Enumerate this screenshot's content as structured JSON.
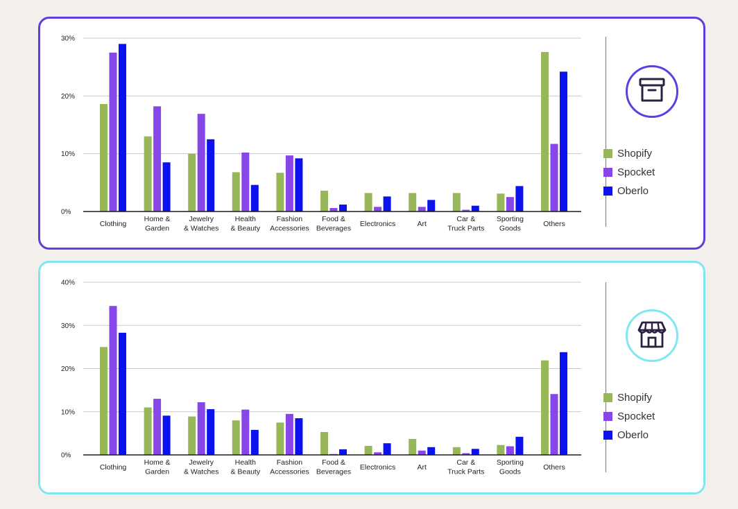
{
  "legend": {
    "items": [
      {
        "name": "Shopify",
        "color": "#97b75a"
      },
      {
        "name": "Spocket",
        "color": "#8646e8"
      },
      {
        "name": "Oberlo",
        "color": "#0b12ee"
      }
    ]
  },
  "panels": [
    {
      "icon": "archive-box-icon",
      "accent": "#5d3fe0"
    },
    {
      "icon": "storefront-icon",
      "accent": "#7fe6f2"
    }
  ],
  "chart_data": [
    {
      "type": "bar",
      "title": "",
      "xlabel": "",
      "ylabel": "",
      "ylim": [
        0,
        30
      ],
      "yticks": [
        "0%",
        "10%",
        "20%",
        "30%"
      ],
      "grid": true,
      "legend_position": "right",
      "categories": [
        [
          "Clothing"
        ],
        [
          "Home &",
          "Garden"
        ],
        [
          "Jewelry",
          "& Watches"
        ],
        [
          "Health",
          "& Beauty"
        ],
        [
          "Fashion",
          "Accessories"
        ],
        [
          "Food &",
          "Beverages"
        ],
        [
          "Electronics"
        ],
        [
          "Art"
        ],
        [
          "Car &",
          "Truck Parts"
        ],
        [
          "Sporting",
          "Goods"
        ],
        [
          "Others"
        ]
      ],
      "series": [
        {
          "name": "Shopify",
          "values": [
            18.6,
            13.0,
            10.0,
            6.8,
            6.7,
            3.6,
            3.2,
            3.2,
            3.2,
            3.1,
            27.6
          ]
        },
        {
          "name": "Spocket",
          "values": [
            27.5,
            18.2,
            16.9,
            10.2,
            9.7,
            0.6,
            0.8,
            0.8,
            0.3,
            2.5,
            11.7
          ]
        },
        {
          "name": "Oberlo",
          "values": [
            29.0,
            8.5,
            12.5,
            4.6,
            9.2,
            1.2,
            2.6,
            2.0,
            1.0,
            4.4,
            24.2
          ]
        }
      ]
    },
    {
      "type": "bar",
      "title": "",
      "xlabel": "",
      "ylabel": "",
      "ylim": [
        0,
        40
      ],
      "yticks": [
        "0%",
        "10%",
        "20%",
        "30%",
        "40%"
      ],
      "grid": true,
      "legend_position": "right",
      "categories": [
        [
          "Clothing"
        ],
        [
          "Home &",
          "Garden"
        ],
        [
          "Jewelry",
          "& Watches"
        ],
        [
          "Health",
          "& Beauty"
        ],
        [
          "Fashion",
          "Accessories"
        ],
        [
          "Food &",
          "Beverages"
        ],
        [
          "Electronics"
        ],
        [
          "Art"
        ],
        [
          "Car &",
          "Truck Parts"
        ],
        [
          "Sporting",
          "Goods"
        ],
        [
          "Others"
        ]
      ],
      "series": [
        {
          "name": "Shopify",
          "values": [
            25.0,
            11.0,
            8.9,
            8.0,
            7.5,
            5.3,
            2.1,
            3.7,
            1.8,
            2.3,
            21.9
          ]
        },
        {
          "name": "Spocket",
          "values": [
            34.5,
            13.0,
            12.2,
            10.5,
            9.5,
            0.2,
            0.6,
            1.0,
            0.4,
            2.0,
            14.1
          ]
        },
        {
          "name": "Oberlo",
          "values": [
            28.3,
            9.1,
            10.6,
            5.8,
            8.5,
            1.3,
            2.7,
            1.8,
            1.4,
            4.2,
            23.8
          ]
        }
      ]
    }
  ]
}
